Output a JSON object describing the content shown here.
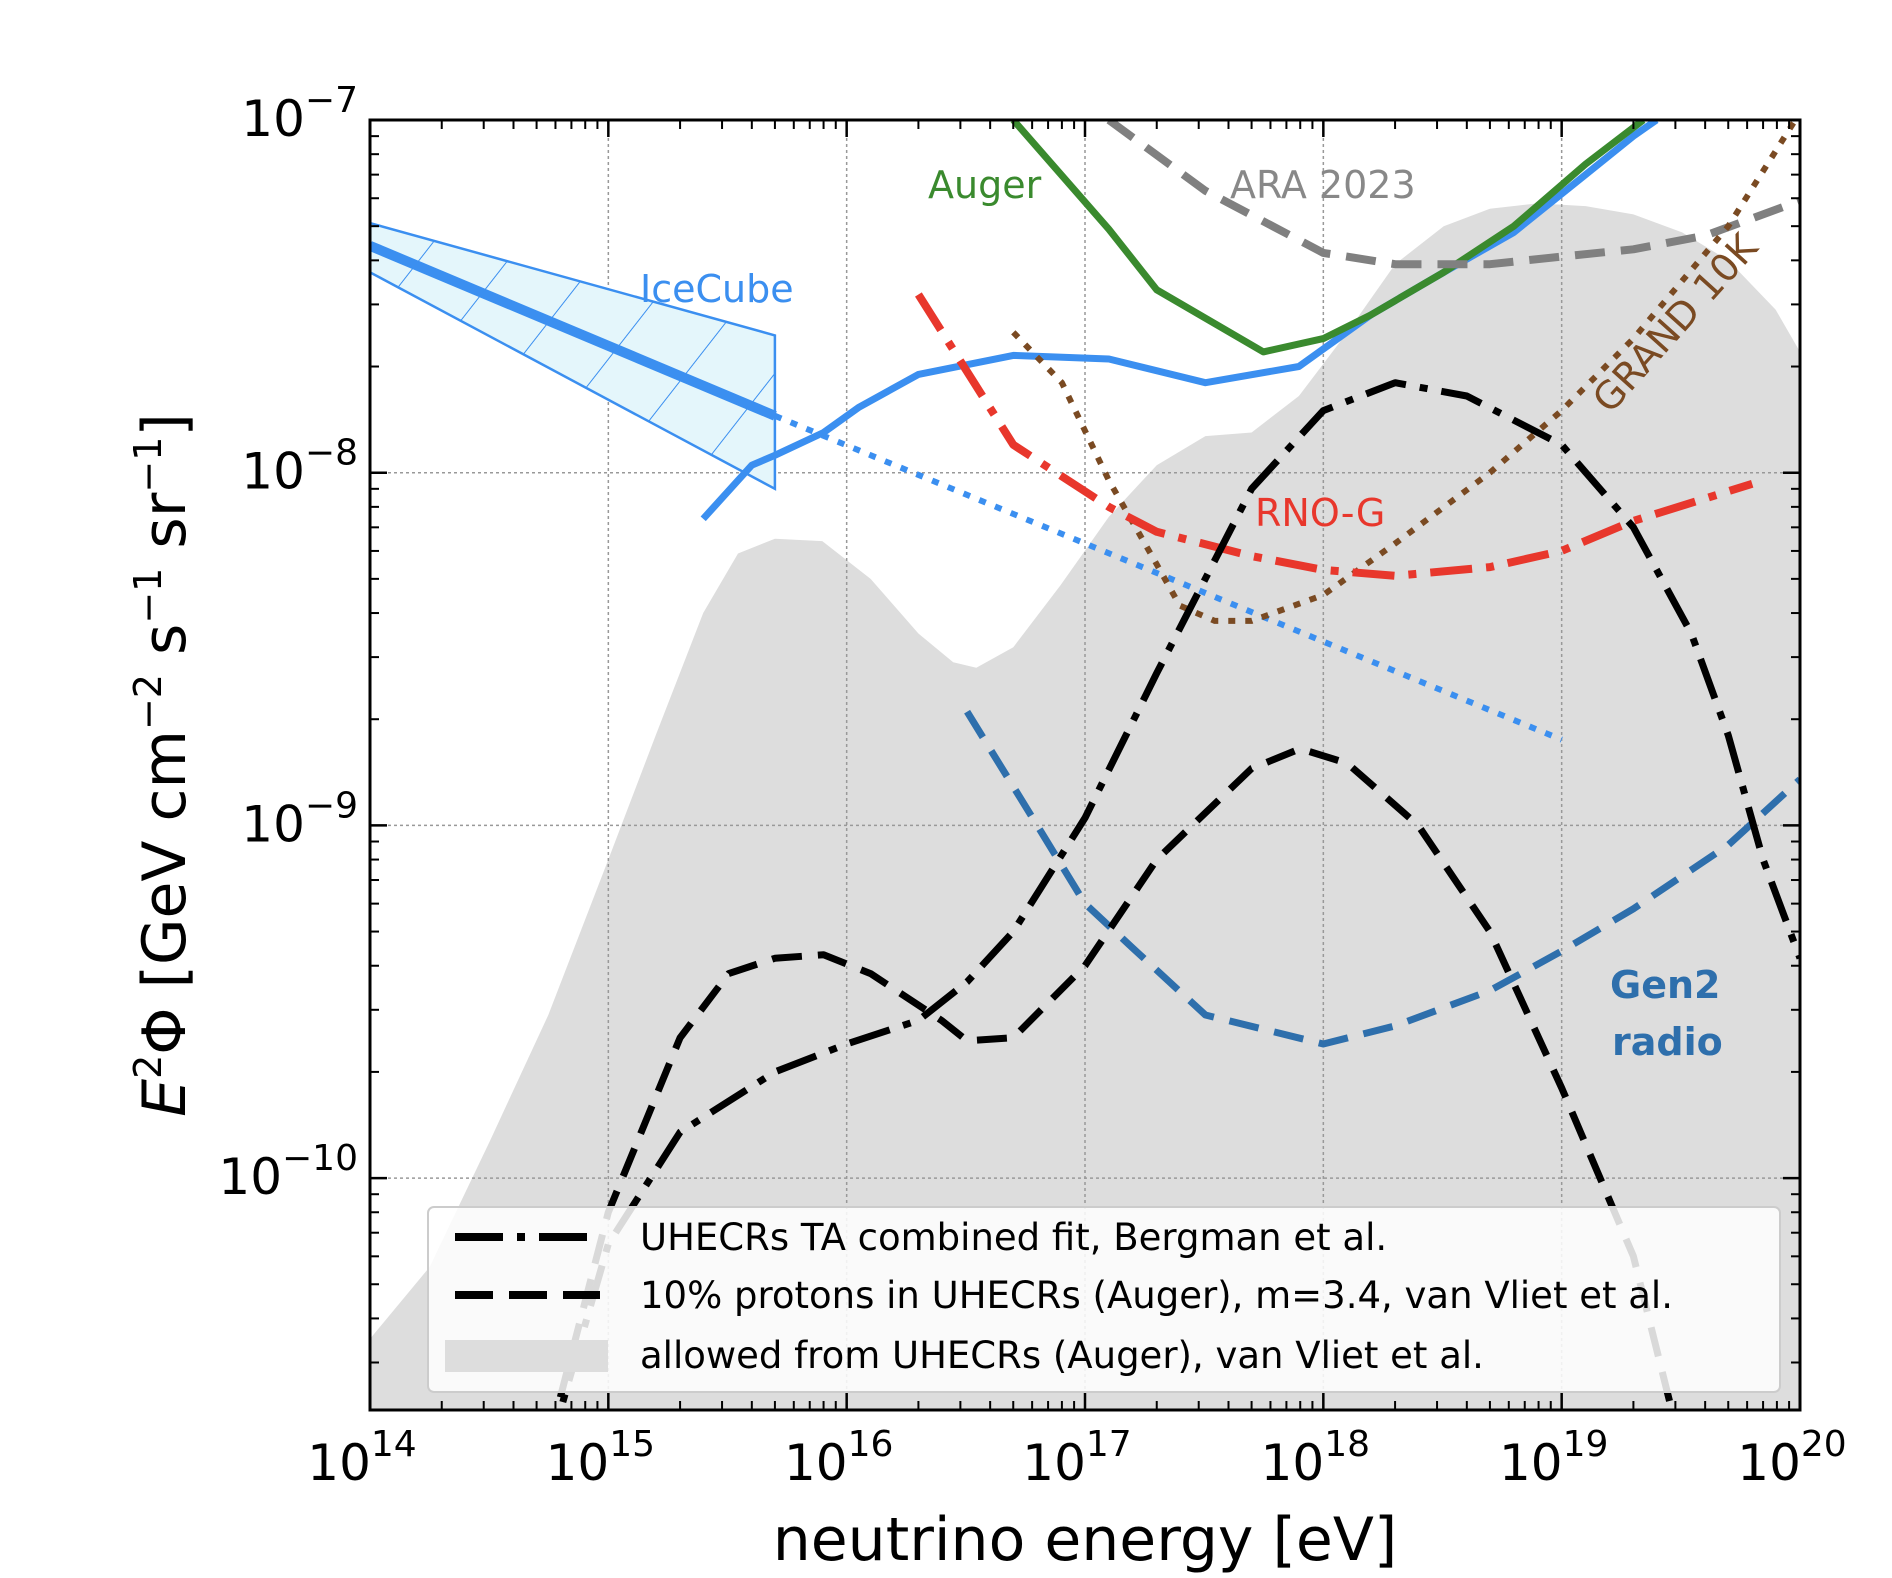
{
  "chart_data": {
    "type": "line",
    "xlabel": "neutrino energy [eV]",
    "ylabel_parts": {
      "E": "E",
      "exp2": "2",
      "phi": "Φ [GeV cm",
      "exp_m2": "−2",
      "s": " s",
      "exp_m1a": "−1",
      "sr": " sr",
      "exp_m1b": "−1",
      "close": "]"
    },
    "x_scale": "log",
    "y_scale": "log",
    "xlim": [
      100000000000000.0,
      1e+20
    ],
    "ylim": [
      2.2e-11,
      1e-07
    ],
    "grid": true,
    "legend_placement": "lower-center",
    "x_ticks": [
      {
        "value": 100000000000000.0,
        "base": "10",
        "exp": "14"
      },
      {
        "value": 1000000000000000.0,
        "base": "10",
        "exp": "15"
      },
      {
        "value": 1e+16,
        "base": "10",
        "exp": "16"
      },
      {
        "value": 1e+17,
        "base": "10",
        "exp": "17"
      },
      {
        "value": 1e+18,
        "base": "10",
        "exp": "18"
      },
      {
        "value": 1e+19,
        "base": "10",
        "exp": "19"
      },
      {
        "value": 1e+20,
        "base": "10",
        "exp": "20"
      }
    ],
    "y_ticks": [
      {
        "value": 1e-07,
        "base": "10",
        "exp": "−7"
      },
      {
        "value": 1e-08,
        "base": "10",
        "exp": "−8"
      },
      {
        "value": 1e-09,
        "base": "10",
        "exp": "−9"
      },
      {
        "value": 1e-10,
        "base": "10",
        "exp": "−10"
      }
    ],
    "legend": [
      {
        "label": "UHECRs TA combined fit, Bergman et al.",
        "style": "dashdot",
        "color": "#000000"
      },
      {
        "label": "10% protons in UHECRs (Auger), m=3.4, van Vliet et al.",
        "style": "dashed",
        "color": "#000000"
      },
      {
        "label": "allowed from UHECRs (Auger), van Vliet et al.",
        "style": "fill",
        "color": "#dddddd"
      }
    ],
    "annotations": [
      {
        "text": "Auger",
        "color": "#3a8a2e"
      },
      {
        "text": "ARA 2023",
        "color": "#888888"
      },
      {
        "text": "IceCube",
        "color": "#3b8ff0"
      },
      {
        "text": "GRAND 10K",
        "color": "#7a4a22"
      },
      {
        "text": "RNO-G",
        "color": "#e8372c"
      },
      {
        "text": "Gen2",
        "color": "#2e6fac"
      },
      {
        "text": "radio",
        "color": "#2e6fac"
      }
    ],
    "allowed_region": {
      "color": "#dddddd",
      "upper": [
        [
          100000000000000.0,
          3.5e-11
        ],
        [
          178000000000000.0,
          5.6e-11
        ],
        [
          316000000000000.0,
          1.26e-10
        ],
        [
          560000000000000.0,
          2.9e-10
        ],
        [
          1000000000000000.0,
          8e-10
        ],
        [
          1580000000000000.0,
          1.8e-09
        ],
        [
          2500000000000000.0,
          4e-09
        ],
        [
          3500000000000000.0,
          5.9e-09
        ],
        [
          5000000000000000.0,
          6.5e-09
        ],
        [
          7900000000000000.0,
          6.4e-09
        ],
        [
          1.26e+16,
          5e-09
        ],
        [
          2e+16,
          3.5e-09
        ],
        [
          2.8e+16,
          2.9e-09
        ],
        [
          3.5e+16,
          2.8e-09
        ],
        [
          5e+16,
          3.2e-09
        ],
        [
          7.9e+16,
          4.8e-09
        ],
        [
          1.26e+17,
          7.5e-09
        ],
        [
          2e+17,
          1.05e-08
        ],
        [
          3.2e+17,
          1.27e-08
        ],
        [
          5e+17,
          1.3e-08
        ],
        [
          7.9e+17,
          1.65e-08
        ],
        [
          1.26e+18,
          2.5e-08
        ],
        [
          2e+18,
          3.9e-08
        ],
        [
          3.2e+18,
          5e-08
        ],
        [
          5e+18,
          5.6e-08
        ],
        [
          7.9e+18,
          5.8e-08
        ],
        [
          1.26e+19,
          5.7e-08
        ],
        [
          2e+19,
          5.4e-08
        ],
        [
          3.2e+19,
          4.8e-08
        ],
        [
          5e+19,
          4e-08
        ],
        [
          7.9e+19,
          2.9e-08
        ],
        [
          1e+20,
          2.2e-08
        ]
      ]
    },
    "series": [
      {
        "name": "IceCube",
        "color": "#3b8ff0",
        "style": "solid",
        "width": 7,
        "points": [
          [
            2500000000000000.0,
            7.4e-09
          ],
          [
            4000000000000000.0,
            1.05e-08
          ],
          [
            5000000000000000.0,
            1.12e-08
          ],
          [
            8000000000000000.0,
            1.3e-08
          ],
          [
            1.12e+16,
            1.53e-08
          ],
          [
            2e+16,
            1.9e-08
          ],
          [
            5e+16,
            2.15e-08
          ],
          [
            1.26e+17,
            2.1e-08
          ],
          [
            3.2e+17,
            1.8e-08
          ],
          [
            7.9e+17,
            2e-08
          ],
          [
            1.58e+18,
            2.8e-08
          ],
          [
            3.2e+18,
            3.7e-08
          ],
          [
            6.3e+18,
            4.8e-08
          ],
          [
            1.26e+19,
            7e-08
          ],
          [
            2e+19,
            9e-08
          ],
          [
            2.5e+19,
            1e-07
          ]
        ]
      },
      {
        "name": "IceCube",
        "color": "#3b8ff0",
        "style": "solid",
        "width": 10,
        "points": [
          [
            100000000000000.0,
            4.4e-08
          ],
          [
            5000000000000000.0,
            1.45e-08
          ]
        ]
      },
      {
        "name": "IceCube",
        "color": "#3b8ff0",
        "style": "dotted",
        "width": 6,
        "points": [
          [
            5000000000000000.0,
            1.45e-08
          ],
          [
            1e+19,
            1.75e-09
          ]
        ]
      },
      {
        "name": "Auger",
        "color": "#3a8a2e",
        "style": "solid",
        "width": 7,
        "points": [
          [
            5e+16,
            1e-07
          ],
          [
            1.26e+17,
            4.9e-08
          ],
          [
            2e+17,
            3.3e-08
          ],
          [
            5.6e+17,
            2.2e-08
          ],
          [
            1e+18,
            2.4e-08
          ],
          [
            1.58e+18,
            2.8e-08
          ],
          [
            3.2e+18,
            3.7e-08
          ],
          [
            6.3e+18,
            5e-08
          ],
          [
            1.26e+19,
            7.5e-08
          ],
          [
            2.2e+19,
            1e-07
          ]
        ]
      },
      {
        "name": "ARA 2023",
        "color": "#808080",
        "style": "dashed",
        "width": 8,
        "points": [
          [
            1.26e+17,
            1e-07
          ],
          [
            3.2e+17,
            6.3e-08
          ],
          [
            1e+18,
            4.2e-08
          ],
          [
            2e+18,
            3.9e-08
          ],
          [
            5e+18,
            3.9e-08
          ],
          [
            1e+19,
            4.1e-08
          ],
          [
            2e+19,
            4.3e-08
          ],
          [
            4e+19,
            4.7e-08
          ],
          [
            1e+20,
            5.9e-08
          ]
        ]
      },
      {
        "name": "GRAND 10K",
        "color": "#7a4a22",
        "style": "dotted",
        "width": 6,
        "points": [
          [
            5e+16,
            2.5e-08
          ],
          [
            8e+16,
            1.8e-08
          ],
          [
            1.26e+17,
            9.5e-09
          ],
          [
            2e+17,
            5.5e-09
          ],
          [
            2.5e+17,
            4.2e-09
          ],
          [
            3.5e+17,
            3.8e-09
          ],
          [
            5e+17,
            3.8e-09
          ],
          [
            1e+18,
            4.5e-09
          ],
          [
            2e+18,
            6.3e-09
          ],
          [
            5e+18,
            1e-08
          ],
          [
            1e+19,
            1.5e-08
          ],
          [
            2e+19,
            2.4e-08
          ],
          [
            5e+19,
            5e-08
          ],
          [
            1e+20,
            1.05e-07
          ]
        ]
      },
      {
        "name": "RNO-G",
        "color": "#e8372c",
        "style": "dashdot",
        "width": 8,
        "points": [
          [
            2e+16,
            3.2e-08
          ],
          [
            5e+16,
            1.2e-08
          ],
          [
            1.26e+17,
            8e-09
          ],
          [
            2e+17,
            6.8e-09
          ],
          [
            5e+17,
            5.8e-09
          ],
          [
            1e+18,
            5.3e-09
          ],
          [
            2e+18,
            5.1e-09
          ],
          [
            5e+18,
            5.4e-09
          ],
          [
            1e+19,
            6e-09
          ],
          [
            2e+19,
            7.3e-09
          ],
          [
            6.3e+19,
            9.3e-09
          ]
        ]
      },
      {
        "name": "Gen2 radio",
        "color": "#2e6fac",
        "style": "dashed",
        "width": 7,
        "points": [
          [
            3.2e+16,
            2.1e-09
          ],
          [
            6.3e+16,
            1e-09
          ],
          [
            1e+17,
            6e-10
          ],
          [
            1.58e+17,
            4.5e-10
          ],
          [
            3.2e+17,
            2.9e-10
          ],
          [
            1e+18,
            2.4e-10
          ],
          [
            2e+18,
            2.7e-10
          ],
          [
            5e+18,
            3.4e-10
          ],
          [
            1e+19,
            4.4e-10
          ],
          [
            2e+19,
            5.8e-10
          ],
          [
            5e+19,
            8.8e-10
          ],
          [
            1e+20,
            1.35e-09
          ]
        ]
      },
      {
        "name": "UHECRs TA combined fit, Bergman et al.",
        "color": "#000000",
        "style": "dashdot",
        "width": 7,
        "points": [
          [
            450000000000000.0,
            1e-11
          ],
          [
            1000000000000000.0,
            6.5e-11
          ],
          [
            2000000000000000.0,
            1.35e-10
          ],
          [
            5000000000000000.0,
            2e-10
          ],
          [
            1e+16,
            2.4e-10
          ],
          [
            2e+16,
            2.8e-10
          ],
          [
            3.2e+16,
            3.6e-10
          ],
          [
            5e+16,
            5e-10
          ],
          [
            1e+17,
            1.05e-09
          ],
          [
            2e+17,
            2.7e-09
          ],
          [
            5e+17,
            9e-09
          ],
          [
            1e+18,
            1.5e-08
          ],
          [
            2e+18,
            1.8e-08
          ],
          [
            4e+18,
            1.65e-08
          ],
          [
            1e+19,
            1.2e-08
          ],
          [
            2e+19,
            7e-09
          ],
          [
            3.5e+19,
            3.5e-09
          ],
          [
            5e+19,
            1.8e-09
          ],
          [
            7e+19,
            8e-10
          ],
          [
            1e+20,
            4.2e-10
          ]
        ]
      },
      {
        "name": "10% protons in UHECRs (Auger), m=3.4, van Vliet et al.",
        "color": "#000000",
        "style": "dashed",
        "width": 7,
        "points": [
          [
            450000000000000.0,
            1e-11
          ],
          [
            1000000000000000.0,
            8e-11
          ],
          [
            2000000000000000.0,
            2.5e-10
          ],
          [
            3200000000000000.0,
            3.8e-10
          ],
          [
            5000000000000000.0,
            4.2e-10
          ],
          [
            8000000000000000.0,
            4.3e-10
          ],
          [
            1.26e+16,
            3.8e-10
          ],
          [
            2.5e+16,
            2.8e-10
          ],
          [
            3.2e+16,
            2.45e-10
          ],
          [
            5e+16,
            2.5e-10
          ],
          [
            1e+17,
            4e-10
          ],
          [
            2e+17,
            8e-10
          ],
          [
            5e+17,
            1.45e-09
          ],
          [
            8e+17,
            1.65e-09
          ],
          [
            1.26e+18,
            1.5e-09
          ],
          [
            2.5e+18,
            1e-09
          ],
          [
            5e+18,
            5e-10
          ],
          [
            1e+19,
            1.8e-10
          ],
          [
            2e+19,
            6e-11
          ],
          [
            3e+19,
            2e-11
          ]
        ]
      }
    ]
  }
}
